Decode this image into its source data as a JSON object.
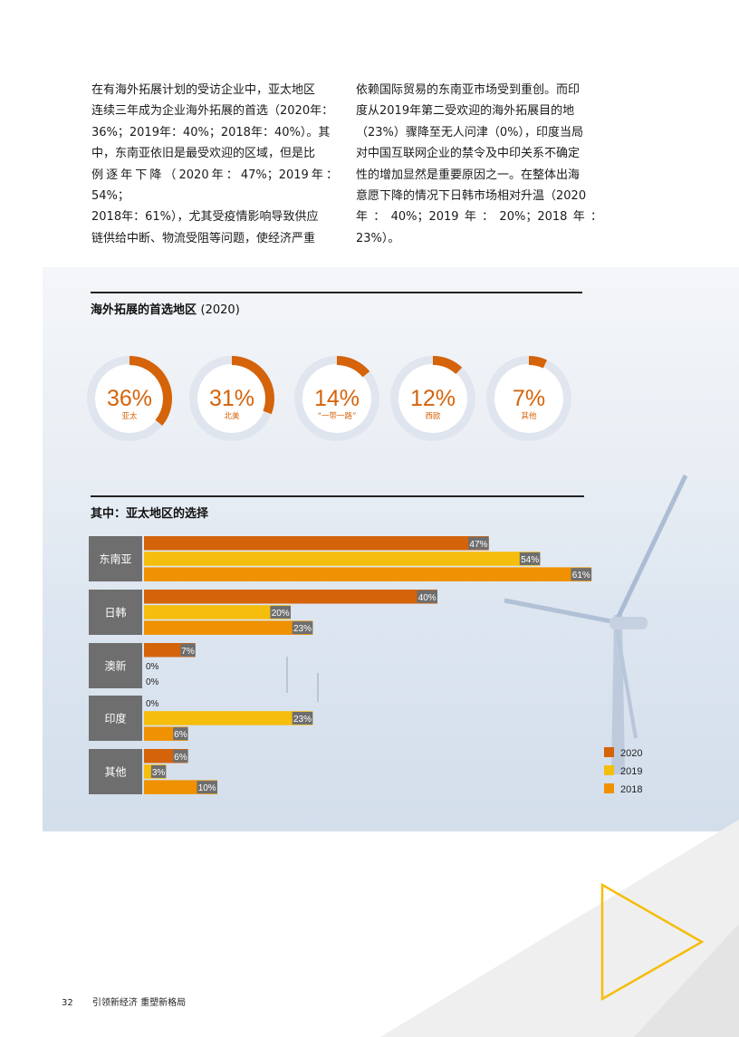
{
  "paragraphs": {
    "col1": [
      "在有海外拓展计划的受访企业中，亚太地区",
      "连续三年成为企业海外拓展的首选（2020年：",
      "36%；2019年：40%；2018年：40%）。其",
      "中，东南亚依旧是最受欢迎的区域，但是比",
      "例逐年下降（2020年：47%；2019年：54%；",
      "2018年：61%），尤其受疫情影响导致供应",
      "链供给中断、物流受阻等问题，使经济严重"
    ],
    "col2": [
      "依赖国际贸易的东南亚市场受到重创。而印",
      "度从2019年第二受欢迎的海外拓展目的地",
      "（23%）骤降至无人问津（0%），印度当局",
      "对中国互联网企业的禁令及中印关系不确定",
      "性的增加显然是重要原因之一。在整体出海",
      "意愿下降的情况下日韩市场相对升温（2020",
      "年：40%；2019年：20%；2018年：23%）。"
    ]
  },
  "section1": {
    "title": "海外拓展的首选地区",
    "year": "(2020)"
  },
  "section2": {
    "title": "其中：亚太地区的选择"
  },
  "footer": {
    "page": "32",
    "text": "引领新经济 重塑新格局"
  },
  "colors": {
    "2020": "#d5630a",
    "2019": "#f5bd0c",
    "2018": "#ef9100",
    "value_label_bg": "#6e6e6e",
    "category_bg": "#6e6e6e",
    "donut_track": "#dde3ec"
  },
  "chart_data": [
    {
      "type": "pie",
      "title": "海外拓展的首选地区 (2020)",
      "categories": [
        "亚太",
        "北美",
        "“一带一路”",
        "西欧",
        "其他"
      ],
      "values": [
        36,
        31,
        14,
        12,
        7
      ],
      "value_labels": [
        "36%",
        "31%",
        "14%",
        "12%",
        "7%"
      ]
    },
    {
      "type": "bar",
      "orientation": "horizontal",
      "title": "其中：亚太地区的选择",
      "categories": [
        "东南亚",
        "日韩",
        "澳新",
        "印度",
        "其他"
      ],
      "series": [
        {
          "name": "2020",
          "values": [
            47,
            40,
            7,
            0,
            6
          ],
          "labels": [
            "47%",
            "40%",
            "7%",
            "0%",
            "6%"
          ]
        },
        {
          "name": "2019",
          "values": [
            54,
            20,
            0,
            23,
            3
          ],
          "labels": [
            "54%",
            "20%",
            "0%",
            "23%",
            "3%"
          ]
        },
        {
          "name": "2018",
          "values": [
            61,
            23,
            0,
            6,
            10
          ],
          "labels": [
            "61%",
            "23%",
            "0%",
            "6%",
            "10%"
          ]
        }
      ],
      "legend": [
        "2020",
        "2019",
        "2018"
      ],
      "legend_position": "bottom-right",
      "xlim": [
        0,
        61
      ]
    }
  ]
}
